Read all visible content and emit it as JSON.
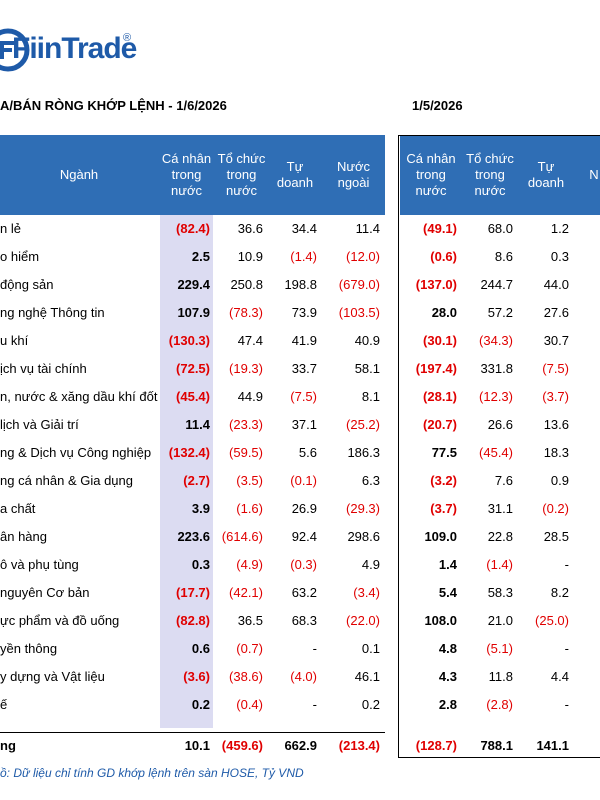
{
  "logo": "FiinTrade",
  "left": {
    "title": "A/BÁN RÒNG KHỚP LỆNH - 1/6/2026",
    "headers": [
      "Ngành",
      "Cá nhân trong nước",
      "Tổ chức trong nước",
      "Tự doanh",
      "Nước ngoài"
    ],
    "rows": [
      [
        "n lẻ",
        "(82.4)",
        "36.6",
        "34.4",
        "11.4"
      ],
      [
        "o hiểm",
        "2.5",
        "10.9",
        "(1.4)",
        "(12.0)"
      ],
      [
        "động sản",
        "229.4",
        "250.8",
        "198.8",
        "(679.0)"
      ],
      [
        "ng nghệ Thông tin",
        "107.9",
        "(78.3)",
        "73.9",
        "(103.5)"
      ],
      [
        "u khí",
        "(130.3)",
        "47.4",
        "41.9",
        "40.9"
      ],
      [
        "ịch vụ tài chính",
        "(72.5)",
        "(19.3)",
        "33.7",
        "58.1"
      ],
      [
        "n, nước & xăng dầu khí đốt",
        "(45.4)",
        "44.9",
        "(7.5)",
        "8.1"
      ],
      [
        "lịch và Giải trí",
        "11.4",
        "(23.3)",
        "37.1",
        "(25.2)"
      ],
      [
        "ng & Dịch vụ Công nghiệp",
        "(132.4)",
        "(59.5)",
        "5.6",
        "186.3"
      ],
      [
        "ng cá nhân & Gia dụng",
        "(2.7)",
        "(3.5)",
        "(0.1)",
        "6.3"
      ],
      [
        "a chất",
        "3.9",
        "(1.6)",
        "26.9",
        "(29.3)"
      ],
      [
        "ân hàng",
        "223.6",
        "(614.6)",
        "92.4",
        "298.6"
      ],
      [
        "ô và phụ tùng",
        "0.3",
        "(4.9)",
        "(0.3)",
        "4.9"
      ],
      [
        "nguyên Cơ bản",
        "(17.7)",
        "(42.1)",
        "63.2",
        "(3.4)"
      ],
      [
        "ực phẩm và đồ uống",
        "(82.8)",
        "36.5",
        "68.3",
        "(22.0)"
      ],
      [
        "yền thông",
        "0.6",
        "(0.7)",
        "-",
        "0.1"
      ],
      [
        "y dựng và Vật liệu",
        "(3.6)",
        "(38.6)",
        "(4.0)",
        "46.1"
      ],
      [
        "ế",
        "0.2",
        "(0.4)",
        "-",
        "0.2"
      ]
    ],
    "total": [
      "ng",
      "10.1",
      "(459.6)",
      "662.9",
      "(213.4)"
    ]
  },
  "right": {
    "title": "1/5/2026",
    "headers": [
      "Cá nhân trong nước",
      "Tổ chức trong nước",
      "Tự doanh",
      "N"
    ],
    "rows": [
      [
        "(49.1)",
        "68.0",
        "1.2"
      ],
      [
        "(0.6)",
        "8.6",
        "0.3"
      ],
      [
        "(137.0)",
        "244.7",
        "44.0"
      ],
      [
        "28.0",
        "57.2",
        "27.6"
      ],
      [
        "(30.1)",
        "(34.3)",
        "30.7"
      ],
      [
        "(197.4)",
        "331.8",
        "(7.5)"
      ],
      [
        "(28.1)",
        "(12.3)",
        "(3.7)"
      ],
      [
        "(20.7)",
        "26.6",
        "13.6"
      ],
      [
        "77.5",
        "(45.4)",
        "18.3"
      ],
      [
        "(3.2)",
        "7.6",
        "0.9"
      ],
      [
        "(3.7)",
        "31.1",
        "(0.2)"
      ],
      [
        "109.0",
        "22.8",
        "28.5"
      ],
      [
        "1.4",
        "(1.4)",
        "-"
      ],
      [
        "5.4",
        "58.3",
        "8.2"
      ],
      [
        "108.0",
        "21.0",
        "(25.0)"
      ],
      [
        "4.8",
        "(5.1)",
        "-"
      ],
      [
        "4.3",
        "11.8",
        "4.4"
      ],
      [
        "2.8",
        "(2.8)",
        "-"
      ]
    ],
    "total": [
      "(128.7)",
      "788.1",
      "141.1"
    ]
  },
  "footer": "ồ: Dữ liệu chỉ tính GD khớp lệnh trên sàn HOSE, Tỷ VND"
}
